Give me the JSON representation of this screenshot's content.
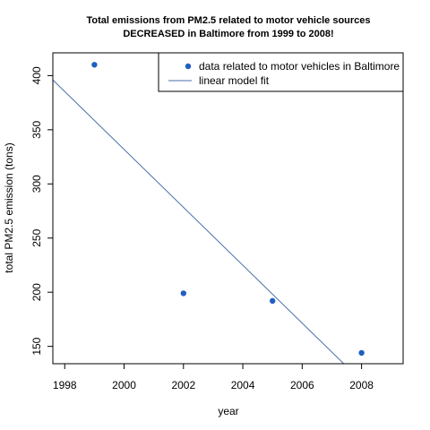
{
  "chart_data": {
    "type": "scatter",
    "title_line1": "Total emissions from PM2.5 related to motor vehicle sources",
    "title_line2": "DECREASED in Baltimore from 1999 to 2008!",
    "xlabel": "year",
    "ylabel": "total PM2.5 emission (tons)",
    "xlim": [
      1997.6,
      2009.4
    ],
    "ylim": [
      134,
      421
    ],
    "x_ticks": [
      1998,
      2000,
      2002,
      2004,
      2006,
      2008
    ],
    "y_ticks": [
      150,
      200,
      250,
      300,
      350,
      400
    ],
    "series": [
      {
        "name": "data related to motor vehicles in Baltimore",
        "x": [
          1999,
          2002,
          2005,
          2008
        ],
        "y": [
          410,
          199,
          192,
          144
        ],
        "color": "#1f5fbf"
      }
    ],
    "fit_line": {
      "name": "linear model fit",
      "x": [
        1997.6,
        2007.4
      ],
      "y": [
        396,
        134
      ],
      "color": "#4a6fa8"
    },
    "legend_position": "top-right",
    "grid": false
  }
}
